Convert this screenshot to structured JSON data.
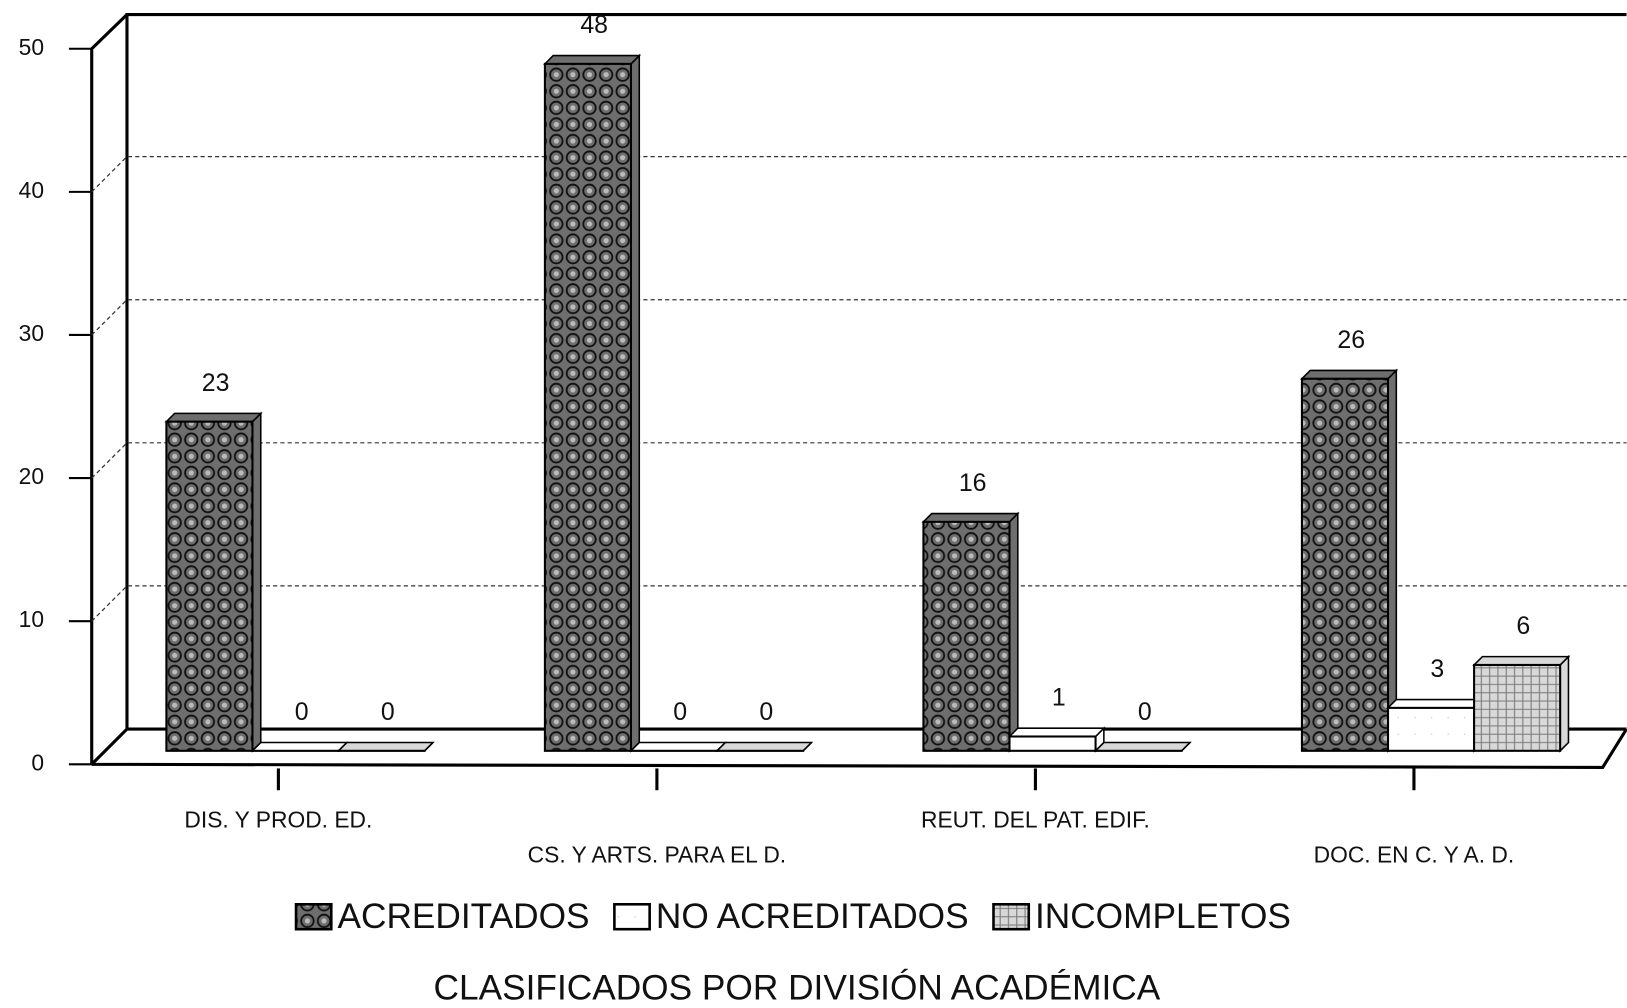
{
  "chart_data": {
    "type": "bar",
    "title": "CLASIFICADOS POR DIVISIÓN ACADÉMICA",
    "categories": [
      "DIS. Y PROD. ED.",
      "CS. Y ARTS. PARA EL D.",
      "REUT. DEL PAT. EDIF.",
      "DOC. EN C. Y A. D."
    ],
    "series": [
      {
        "name": "ACREDITADOS",
        "color": "#6e6e6e",
        "values": [
          23,
          48,
          16,
          26
        ]
      },
      {
        "name": "NO ACREDITADOS",
        "color": "#ffffff",
        "values": [
          0,
          0,
          1,
          3
        ]
      },
      {
        "name": "INCOMPLETOS",
        "color": "#d8d8d8",
        "values": [
          0,
          0,
          0,
          6
        ]
      }
    ],
    "ylim": [
      0,
      50
    ],
    "yticks": [
      0,
      10,
      20,
      30,
      40,
      50
    ],
    "grid": true,
    "legend": "bottom"
  }
}
